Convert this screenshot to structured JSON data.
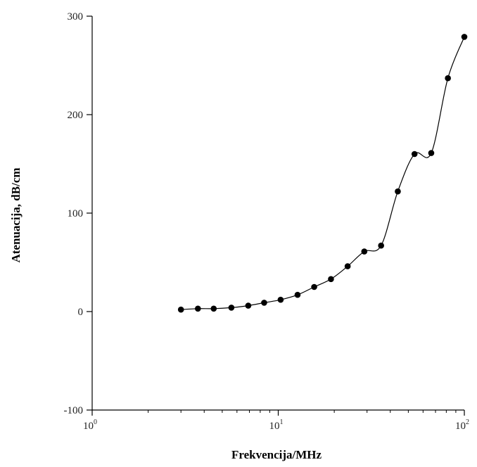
{
  "chart_data": {
    "type": "line",
    "xlabel": "Frekvencija/MHz",
    "ylabel": "Atenuacija, dB/cm",
    "x_scale": "log",
    "xlim": [
      1,
      100
    ],
    "ylim": [
      -100,
      300
    ],
    "x_ticks": [
      {
        "value": 1,
        "base": "10",
        "exp": "0"
      },
      {
        "value": 10,
        "base": "10",
        "exp": "1"
      },
      {
        "value": 100,
        "base": "10",
        "exp": "2"
      }
    ],
    "y_ticks": [
      -100,
      0,
      100,
      200,
      300
    ],
    "grid": false,
    "series": [
      {
        "color": "#000000",
        "marker": "filled-circle",
        "x": [
          3.0,
          3.7,
          4.5,
          5.6,
          6.9,
          8.4,
          10.3,
          12.7,
          15.6,
          19.2,
          23.6,
          29.0,
          35.7,
          43.9,
          54.0,
          66.4,
          81.6,
          100.0
        ],
        "y": [
          2,
          3,
          3,
          4,
          6,
          9,
          12,
          17,
          25,
          33,
          46,
          61,
          67,
          122,
          160,
          161,
          237,
          279
        ]
      }
    ]
  }
}
